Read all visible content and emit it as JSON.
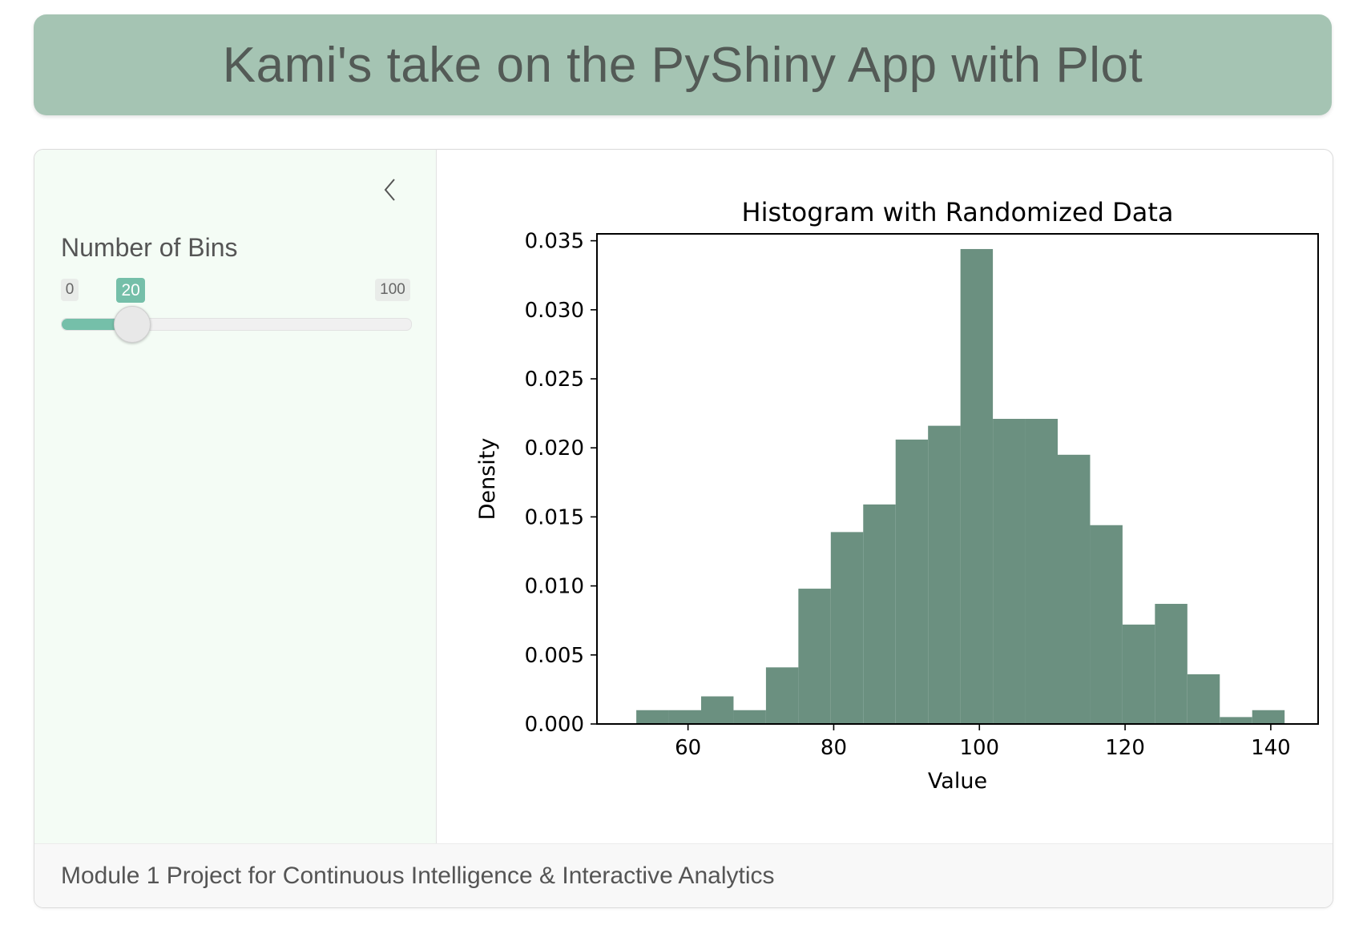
{
  "header": {
    "title": "Kami's take on the PyShiny App with Plot"
  },
  "sidebar": {
    "collapse_icon": "chevron-left-icon",
    "slider": {
      "label": "Number of Bins",
      "min": "0",
      "max": "100",
      "value": "20",
      "value_fraction": 0.2
    }
  },
  "footer": {
    "text": "Module 1 Project for Continuous Intelligence & Interactive Analytics"
  },
  "colors": {
    "header_bg": "#a5c4b3",
    "accent": "#75bfa9",
    "bar": "#6b9080",
    "sidebar_bg": "#f4fcf5"
  },
  "chart_data": {
    "type": "bar",
    "title": "Histogram with Randomized Data",
    "xlabel": "Value",
    "ylabel": "Density",
    "bins": 20,
    "xlim": [
      47.5,
      146.5
    ],
    "ylim": [
      0,
      0.0355
    ],
    "xticks": [
      "60",
      "80",
      "100",
      "120",
      "140"
    ],
    "xtick_values": [
      60,
      80,
      100,
      120,
      140
    ],
    "yticks": [
      "0.000",
      "0.005",
      "0.010",
      "0.015",
      "0.020",
      "0.025",
      "0.030",
      "0.035"
    ],
    "ytick_values": [
      0,
      0.005,
      0.01,
      0.015,
      0.02,
      0.025,
      0.03,
      0.035
    ],
    "bin_edges": [
      52.9,
      57.35,
      61.8,
      66.25,
      70.7,
      75.15,
      79.6,
      84.05,
      88.5,
      92.95,
      97.4,
      101.85,
      106.3,
      110.75,
      115.2,
      119.65,
      124.1,
      128.55,
      133.0,
      137.45,
      141.9
    ],
    "values": [
      0.001,
      0.001,
      0.002,
      0.001,
      0.0041,
      0.0098,
      0.0139,
      0.0159,
      0.0206,
      0.0216,
      0.0344,
      0.0221,
      0.0221,
      0.0195,
      0.0144,
      0.0072,
      0.0087,
      0.0036,
      0.0005,
      0.001
    ],
    "grid": false,
    "legend": false
  }
}
